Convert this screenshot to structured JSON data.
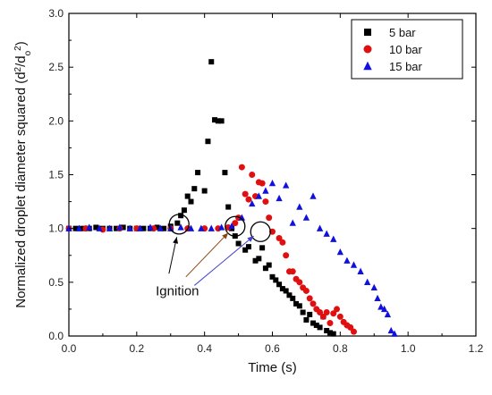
{
  "chart_data": {
    "type": "scatter",
    "xlabel": "Time (s)",
    "ylabel_main": "Normalized droplet diameter squared (d",
    "ylabel_sup1": "2",
    "ylabel_mid": "/d",
    "ylabel_sub": "o",
    "ylabel_sup2": "2",
    "ylabel_end": ")",
    "xlim": [
      0.0,
      1.2
    ],
    "ylim": [
      0.0,
      3.0
    ],
    "xticks": [
      "0.0",
      "0.2",
      "0.4",
      "0.6",
      "0.8",
      "1.0",
      "1.2"
    ],
    "yticks": [
      "0.0",
      "0.5",
      "1.0",
      "1.5",
      "2.0",
      "2.5",
      "3.0"
    ],
    "legend_position": "top-right",
    "series": [
      {
        "name": "5 bar",
        "marker": "square",
        "color": "#000000",
        "x": [
          0.0,
          0.02,
          0.04,
          0.06,
          0.08,
          0.1,
          0.12,
          0.14,
          0.16,
          0.18,
          0.2,
          0.22,
          0.24,
          0.26,
          0.28,
          0.3,
          0.32,
          0.33,
          0.34,
          0.35,
          0.36,
          0.37,
          0.38,
          0.4,
          0.41,
          0.42,
          0.43,
          0.44,
          0.45,
          0.46,
          0.47,
          0.48,
          0.49,
          0.5,
          0.52,
          0.53,
          0.55,
          0.56,
          0.57,
          0.58,
          0.59,
          0.6,
          0.61,
          0.62,
          0.63,
          0.64,
          0.65,
          0.66,
          0.67,
          0.68,
          0.69,
          0.7,
          0.71,
          0.72,
          0.73,
          0.74,
          0.75,
          0.76,
          0.77,
          0.78
        ],
        "y": [
          1.0,
          1.0,
          1.0,
          1.0,
          1.01,
          1.0,
          1.0,
          1.0,
          1.01,
          1.0,
          1.0,
          1.0,
          1.0,
          1.01,
          1.0,
          1.02,
          1.05,
          1.12,
          1.17,
          1.3,
          1.25,
          1.37,
          1.52,
          1.35,
          1.81,
          2.55,
          2.01,
          2.0,
          2.0,
          1.52,
          1.2,
          1.0,
          0.93,
          0.86,
          0.8,
          0.83,
          0.7,
          0.72,
          0.82,
          0.63,
          0.66,
          0.55,
          0.52,
          0.48,
          0.44,
          0.42,
          0.38,
          0.35,
          0.3,
          0.28,
          0.22,
          0.15,
          0.2,
          0.12,
          0.1,
          0.08,
          0.18,
          0.05,
          0.03,
          0.02
        ]
      },
      {
        "name": "10 bar",
        "marker": "circle",
        "color": "#e01010",
        "x": [
          0.0,
          0.05,
          0.1,
          0.15,
          0.2,
          0.25,
          0.3,
          0.35,
          0.4,
          0.44,
          0.47,
          0.49,
          0.5,
          0.51,
          0.52,
          0.53,
          0.54,
          0.55,
          0.56,
          0.57,
          0.58,
          0.59,
          0.6,
          0.62,
          0.63,
          0.64,
          0.65,
          0.66,
          0.67,
          0.68,
          0.69,
          0.7,
          0.71,
          0.72,
          0.73,
          0.74,
          0.75,
          0.76,
          0.77,
          0.78,
          0.79,
          0.8,
          0.81,
          0.82,
          0.83,
          0.84
        ],
        "y": [
          1.0,
          1.0,
          0.99,
          1.0,
          1.0,
          1.0,
          1.0,
          1.0,
          1.0,
          1.0,
          1.01,
          1.05,
          1.1,
          1.57,
          1.32,
          1.27,
          1.5,
          1.3,
          1.43,
          1.42,
          1.25,
          1.1,
          0.97,
          0.91,
          0.87,
          0.75,
          0.6,
          0.6,
          0.53,
          0.5,
          0.45,
          0.42,
          0.35,
          0.3,
          0.25,
          0.22,
          0.18,
          0.22,
          0.12,
          0.21,
          0.25,
          0.18,
          0.13,
          0.1,
          0.08,
          0.04
        ]
      },
      {
        "name": "15 bar",
        "marker": "triangle",
        "color": "#1010e0",
        "x": [
          0.0,
          0.03,
          0.06,
          0.09,
          0.12,
          0.15,
          0.18,
          0.21,
          0.24,
          0.27,
          0.3,
          0.33,
          0.36,
          0.39,
          0.42,
          0.45,
          0.48,
          0.51,
          0.54,
          0.56,
          0.58,
          0.6,
          0.62,
          0.64,
          0.66,
          0.68,
          0.7,
          0.72,
          0.74,
          0.76,
          0.78,
          0.8,
          0.82,
          0.84,
          0.86,
          0.88,
          0.9,
          0.91,
          0.92,
          0.93,
          0.94,
          0.95,
          0.96
        ],
        "y": [
          1.0,
          1.0,
          1.01,
          1.0,
          1.0,
          1.01,
          1.0,
          1.0,
          1.01,
          1.0,
          1.0,
          1.01,
          1.0,
          1.0,
          1.0,
          1.01,
          1.02,
          1.1,
          1.23,
          1.3,
          1.35,
          1.42,
          1.28,
          1.4,
          1.05,
          1.2,
          1.1,
          1.3,
          1.0,
          0.95,
          0.9,
          0.78,
          0.7,
          0.66,
          0.6,
          0.5,
          0.45,
          0.35,
          0.27,
          0.25,
          0.2,
          0.05,
          0.02
        ]
      }
    ],
    "ignition_circles": [
      {
        "x": 0.325,
        "y": 1.04
      },
      {
        "x": 0.49,
        "y": 1.02
      },
      {
        "x": 0.565,
        "y": 0.97
      }
    ],
    "annotation": {
      "text": "Ignition",
      "text_x": 0.32,
      "text_y": 0.38,
      "arrows": [
        {
          "from_x": 0.295,
          "from_y": 0.58,
          "to_x": 0.318,
          "to_y": 0.92,
          "color": "#000000"
        },
        {
          "from_x": 0.345,
          "from_y": 0.55,
          "to_x": 0.47,
          "to_y": 0.96,
          "color": "#8b4513"
        },
        {
          "from_x": 0.37,
          "from_y": 0.47,
          "to_x": 0.545,
          "to_y": 0.93,
          "color": "#4444cc"
        }
      ]
    }
  }
}
